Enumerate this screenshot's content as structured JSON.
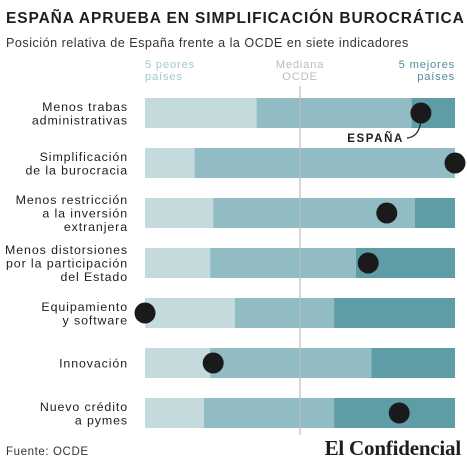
{
  "title": "ESPAÑA APRUEBA EN SIMPLIFICACIÓN BUROCRÁTICA",
  "subtitle": "Posición relativa de España frente a la OCDE en siete indicadores",
  "source": "Fuente: OCDE",
  "brand": "El Confidencial",
  "chart_data": {
    "type": "bar",
    "orientation": "horizontal",
    "scale_min": 0,
    "scale_max": 1,
    "markers": [
      {
        "label": "5 peores\npaíses",
        "position": 0.0,
        "color": "#a3c7cc"
      },
      {
        "label": "Mediana\nOCDE",
        "position": 0.5,
        "color": "#bdbdbd"
      },
      {
        "label": "5 mejores\npaíses",
        "position": 1.0,
        "color": "#4e8f99"
      }
    ],
    "spain_label": "ESPAÑA",
    "colors": {
      "worst": "#c4dadd",
      "middle": "#91bcc3",
      "best": "#5e9ca6",
      "spain": "#1a1a1a",
      "median_line": "#bdbdbd"
    },
    "categories": [
      "Menos trabas\nadministrativas",
      "Simplificación\nde la burocracia",
      "Menos restricción\na la inversión\nextranjera",
      "Menos distorsiones\npor la participación\ndel Estado",
      "Equipamiento\ny software",
      "Innovación",
      "Nuevo crédito\na pymes"
    ],
    "rows": [
      {
        "worst_end": 0.36,
        "best_start": 0.86,
        "spain": 0.89
      },
      {
        "worst_end": 0.16,
        "best_start": 1.0,
        "spain": 1.0
      },
      {
        "worst_end": 0.22,
        "best_start": 0.87,
        "spain": 0.78
      },
      {
        "worst_end": 0.21,
        "best_start": 0.68,
        "spain": 0.72
      },
      {
        "worst_end": 0.29,
        "best_start": 0.61,
        "spain": 0.0
      },
      {
        "worst_end": 0.21,
        "best_start": 0.73,
        "spain": 0.22
      },
      {
        "worst_end": 0.19,
        "best_start": 0.61,
        "spain": 0.82
      }
    ]
  }
}
